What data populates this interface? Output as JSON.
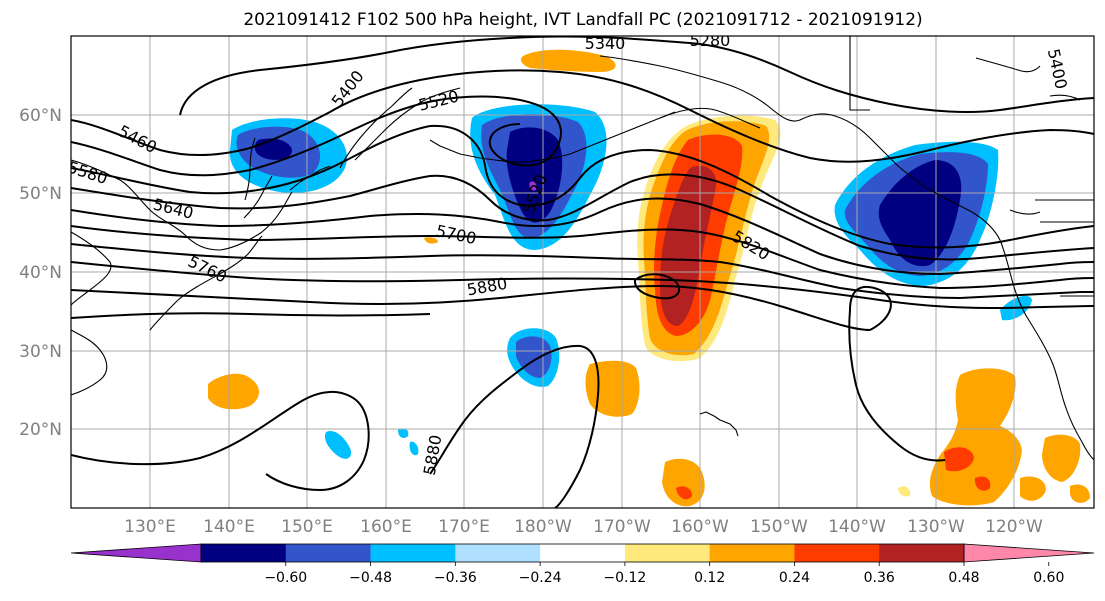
{
  "title": "2021091412 F102 500 hPa height, IVT Landfall PC (2021091712 - 2021091912)",
  "map": {
    "lat_labels": [
      "60°N",
      "50°N",
      "40°N",
      "30°N",
      "20°N"
    ],
    "lon_labels": [
      "130°E",
      "140°E",
      "150°E",
      "160°E",
      "170°E",
      "180°W",
      "170°W",
      "160°W",
      "150°W",
      "140°W",
      "130°W",
      "120°W"
    ],
    "gridlines": true
  },
  "height_contour_labels": [
    "5340",
    "5280",
    "5400",
    "5520",
    "5460",
    "5580",
    "5640",
    "5700",
    "5760",
    "5880",
    "5820",
    "5880",
    "5400",
    "5520"
  ],
  "colorbar": {
    "ticks": [
      "−0.60",
      "−0.48",
      "−0.36",
      "−0.24",
      "−0.12",
      "0.12",
      "0.24",
      "0.36",
      "0.48",
      "0.60"
    ],
    "colors": [
      "#9932cc",
      "#000080",
      "#3355cc",
      "#00bfff",
      "#b0e0ff",
      "#ffffff",
      "#ffe87c",
      "#ffa500",
      "#ff3c00",
      "#b22222",
      "#ff88aa"
    ]
  },
  "palette": {
    "neg_strong": "#000080",
    "neg_mid": "#3355cc",
    "neg_light": "#00bfff",
    "neg_pale": "#b0e0ff",
    "neg_extreme": "#9932cc",
    "pos_pale": "#ffe87c",
    "pos_light": "#ffa500",
    "pos_mid": "#ff3c00",
    "pos_strong": "#b22222"
  }
}
